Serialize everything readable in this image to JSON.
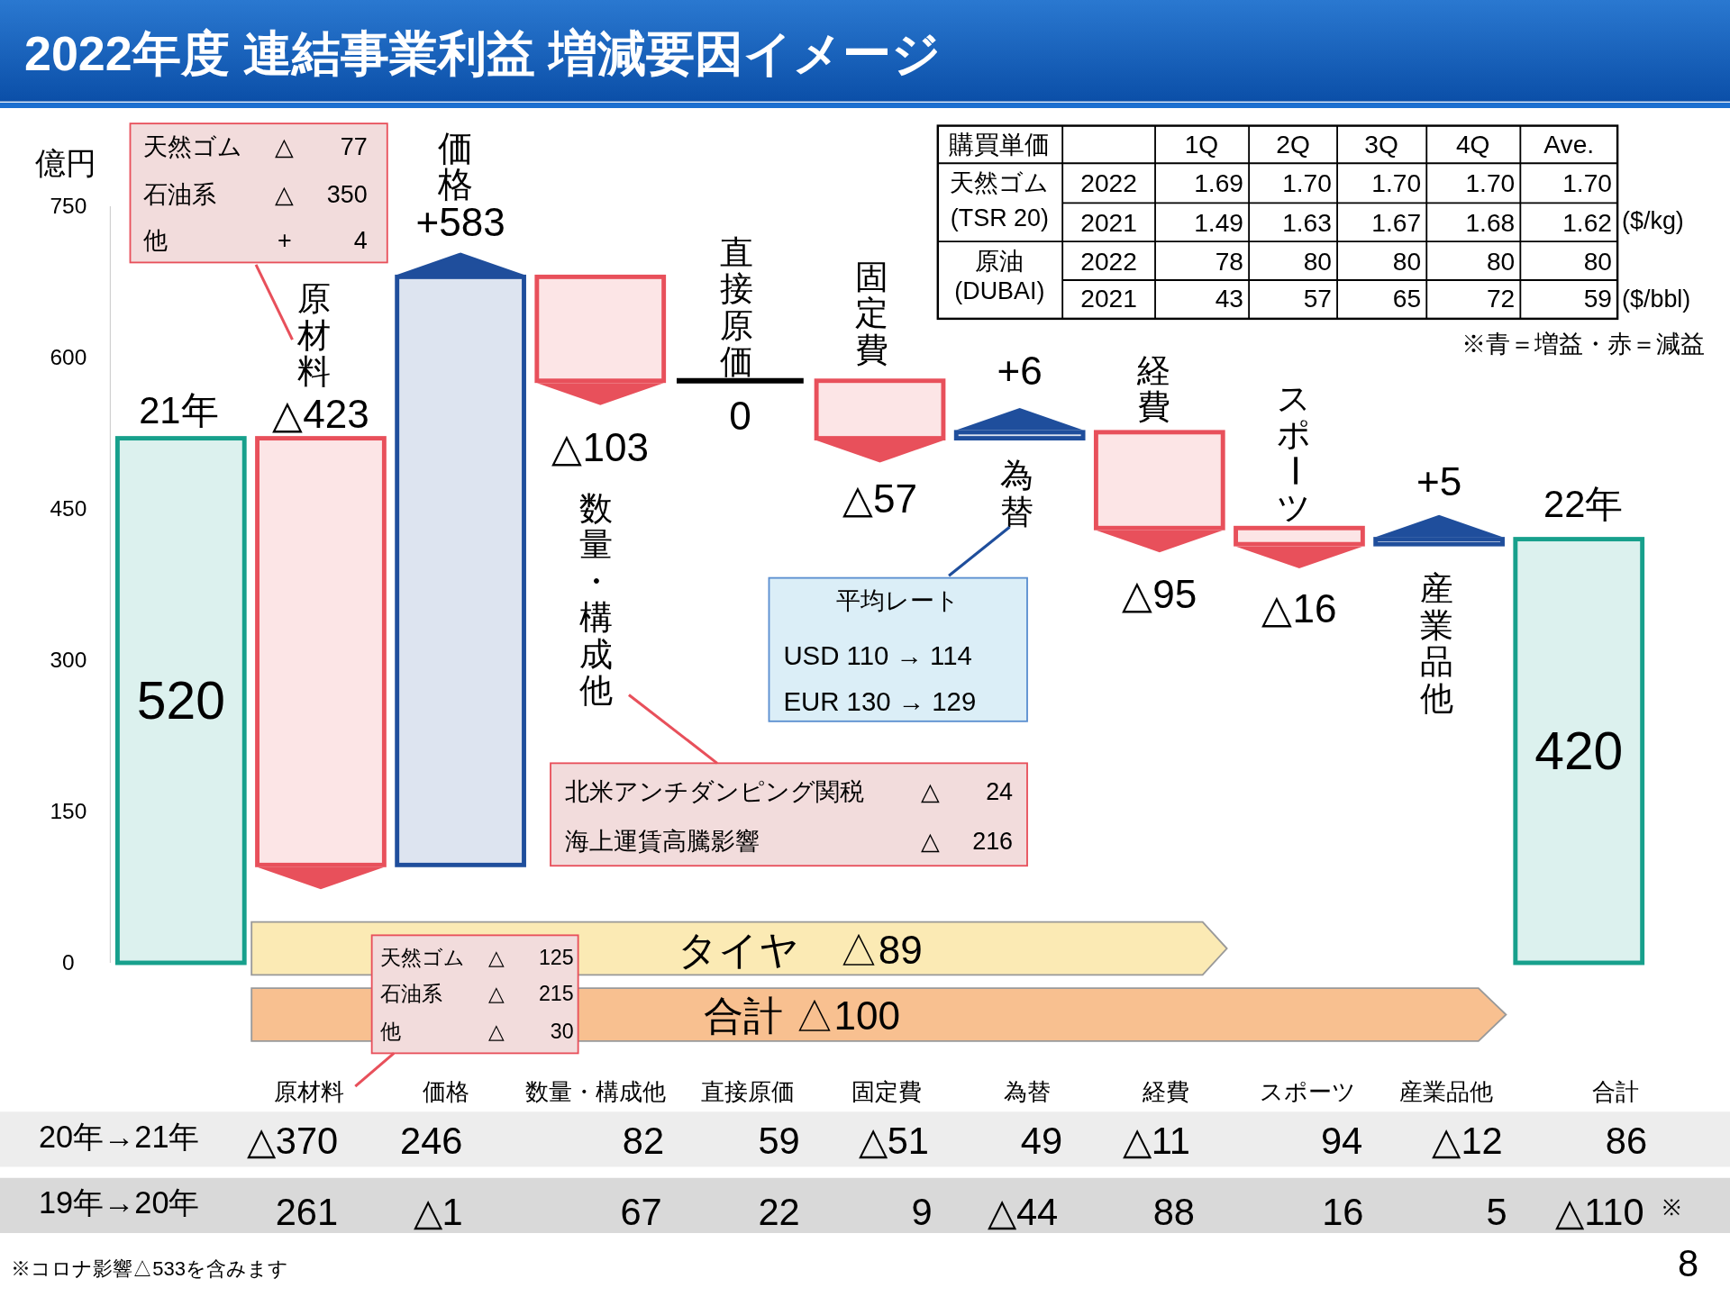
{
  "chart_data": {
    "type": "bar",
    "title": "2022年度 連結事業利益 増減要因イメージ",
    "ylabel": "億円",
    "categories": [
      "21年",
      "原材料",
      "価格",
      "数量・構成他",
      "直接原価",
      "固定費",
      "為替",
      "経費",
      "スポーツ",
      "産業品他",
      "22年"
    ],
    "values": [
      520,
      -423,
      583,
      -103,
      0,
      -57,
      6,
      -95,
      -16,
      5,
      420
    ],
    "base": [
      0,
      520,
      97,
      680,
      577,
      577,
      520,
      526,
      431,
      415,
      0
    ],
    "colors": [
      "#17a08c",
      "#e8505b",
      "#1f4e9c",
      "#e8505b",
      "#000000",
      "#e8505b",
      "#1f4e9c",
      "#e8505b",
      "#e8505b",
      "#1f4e9c",
      "#17a08c"
    ],
    "value_labels": [
      "520",
      "△423",
      "+583",
      "△103",
      "0",
      "△57",
      "+6",
      "△95",
      "△16",
      "+5",
      "420"
    ],
    "ylim": [
      0,
      750
    ],
    "yticks": [
      0,
      150,
      300,
      450,
      600,
      750
    ],
    "annotations": [
      "天然ゴム",
      "△",
      "77",
      "石油系",
      "△",
      "350",
      "他",
      "+",
      "4",
      "北米アンチダンピング関税",
      "△",
      "24",
      "海上運賃高騰影響",
      "△",
      "216",
      "平均レート",
      "USD  110 →  114",
      "EUR  130 →  129",
      "購買単価",
      "1Q",
      "2Q",
      "3Q",
      "4Q",
      "Ave.",
      "天然ゴム",
      "(TSR 20)",
      "2022",
      "1.69",
      "1.70",
      "1.70",
      "1.70",
      "1.70",
      "2021",
      "1.49",
      "1.63",
      "1.67",
      "1.68",
      "1.62",
      "原油",
      "(DUBAI)",
      "2022",
      "78",
      "80",
      "80",
      "80",
      "80",
      "2021",
      "43",
      "57",
      "65",
      "72",
      "59",
      "($/kg)",
      "($/bbl)",
      "※青＝増益・赤＝減益",
      "タイヤ　△89",
      "合計 △100",
      "天然ゴム",
      "△",
      "125",
      "石油系",
      "△",
      "215",
      "他",
      "△",
      "30",
      "原材料",
      "価格",
      "数量・構成他",
      "直接原価",
      "固定費",
      "為替",
      "経費",
      "スポーツ",
      "産業品他",
      "合計",
      "20年→21年",
      "△370",
      "246",
      "82",
      "59",
      "△51",
      "49",
      "△11",
      "94",
      "△12",
      "86",
      "19年→20年",
      "261",
      "△1",
      "67",
      "22",
      "9",
      "△44",
      "88",
      "16",
      "5",
      "△110",
      "※",
      "※コロナ影響△533を含みます",
      "8"
    ]
  }
}
